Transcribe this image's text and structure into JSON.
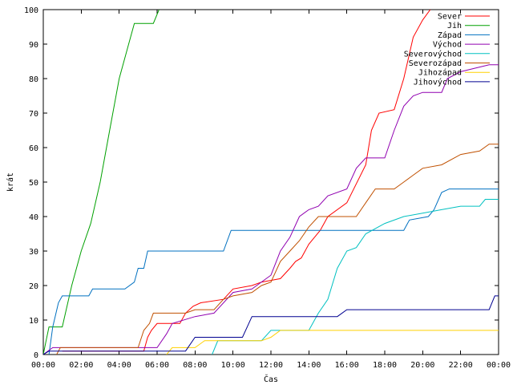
{
  "chart_data": {
    "type": "line",
    "title": "",
    "xlabel": "Čas",
    "ylabel": "krát",
    "xlim": [
      0,
      24
    ],
    "ylim": [
      0,
      100
    ],
    "grid": false,
    "legend_position": "top-right",
    "x_ticks": [
      {
        "value": 0,
        "label": "00:00"
      },
      {
        "value": 2,
        "label": "02:00"
      },
      {
        "value": 4,
        "label": "04:00"
      },
      {
        "value": 6,
        "label": "06:00"
      },
      {
        "value": 8,
        "label": "08:00"
      },
      {
        "value": 10,
        "label": "10:00"
      },
      {
        "value": 12,
        "label": "12:00"
      },
      {
        "value": 14,
        "label": "14:00"
      },
      {
        "value": 16,
        "label": "16:00"
      },
      {
        "value": 18,
        "label": "18:00"
      },
      {
        "value": 20,
        "label": "20:00"
      },
      {
        "value": 22,
        "label": "22:00"
      },
      {
        "value": 24,
        "label": "00:00"
      }
    ],
    "y_ticks": [
      {
        "value": 0,
        "label": "0"
      },
      {
        "value": 10,
        "label": "10"
      },
      {
        "value": 20,
        "label": "20"
      },
      {
        "value": 30,
        "label": "30"
      },
      {
        "value": 40,
        "label": "40"
      },
      {
        "value": 50,
        "label": "50"
      },
      {
        "value": 60,
        "label": "60"
      },
      {
        "value": 70,
        "label": "70"
      },
      {
        "value": 80,
        "label": "80"
      },
      {
        "value": 90,
        "label": "90"
      },
      {
        "value": 100,
        "label": "100"
      }
    ],
    "series": [
      {
        "name": "Sever",
        "color": "#ff0000",
        "points": [
          [
            1.0,
            1
          ],
          [
            5.3,
            1
          ],
          [
            5.5,
            5
          ],
          [
            5.7,
            7
          ],
          [
            6.0,
            9
          ],
          [
            7.2,
            9
          ],
          [
            7.5,
            12
          ],
          [
            7.9,
            14
          ],
          [
            8.3,
            15
          ],
          [
            9.5,
            16
          ],
          [
            10.0,
            19
          ],
          [
            11.0,
            20
          ],
          [
            11.5,
            21
          ],
          [
            12.5,
            22
          ],
          [
            13.0,
            25
          ],
          [
            13.3,
            27
          ],
          [
            13.6,
            28
          ],
          [
            14.0,
            32
          ],
          [
            14.3,
            34
          ],
          [
            14.6,
            36
          ],
          [
            15.0,
            40
          ],
          [
            16.0,
            44
          ],
          [
            17.0,
            55
          ],
          [
            17.3,
            65
          ],
          [
            17.7,
            70
          ],
          [
            18.5,
            71
          ],
          [
            19.0,
            80
          ],
          [
            19.5,
            92
          ],
          [
            20.0,
            97
          ],
          [
            20.4,
            100
          ]
        ]
      },
      {
        "name": "Jih",
        "color": "#00a000",
        "points": [
          [
            0.0,
            0
          ],
          [
            0.15,
            4
          ],
          [
            0.3,
            8
          ],
          [
            1.0,
            8
          ],
          [
            1.5,
            20
          ],
          [
            2.0,
            30
          ],
          [
            2.5,
            38
          ],
          [
            3.0,
            50
          ],
          [
            3.5,
            65
          ],
          [
            4.0,
            80
          ],
          [
            4.5,
            90
          ],
          [
            4.8,
            96
          ],
          [
            5.8,
            96
          ],
          [
            6.1,
            100
          ]
        ]
      },
      {
        "name": "Západ",
        "color": "#0070c0",
        "points": [
          [
            0.3,
            0
          ],
          [
            0.5,
            8
          ],
          [
            0.8,
            15
          ],
          [
            1.0,
            17
          ],
          [
            2.4,
            17
          ],
          [
            2.6,
            19
          ],
          [
            4.3,
            19
          ],
          [
            4.8,
            21
          ],
          [
            5.0,
            25
          ],
          [
            5.3,
            25
          ],
          [
            5.5,
            30
          ],
          [
            9.5,
            30
          ],
          [
            9.9,
            36
          ],
          [
            19.0,
            36
          ],
          [
            19.3,
            39
          ],
          [
            20.3,
            40
          ],
          [
            20.6,
            42
          ],
          [
            21.0,
            47
          ],
          [
            21.4,
            48
          ],
          [
            24.0,
            48
          ]
        ]
      },
      {
        "name": "Východ",
        "color": "#9000b0",
        "points": [
          [
            0.0,
            0
          ],
          [
            0.5,
            2
          ],
          [
            6.0,
            2
          ],
          [
            6.5,
            6
          ],
          [
            6.8,
            9
          ],
          [
            8.0,
            11
          ],
          [
            9.0,
            12
          ],
          [
            10.0,
            18
          ],
          [
            11.0,
            19
          ],
          [
            12.0,
            23
          ],
          [
            12.5,
            30
          ],
          [
            13.0,
            34
          ],
          [
            13.5,
            40
          ],
          [
            14.0,
            42
          ],
          [
            14.5,
            43
          ],
          [
            15.0,
            46
          ],
          [
            16.0,
            48
          ],
          [
            16.5,
            54
          ],
          [
            17.0,
            57
          ],
          [
            18.0,
            57
          ],
          [
            18.5,
            65
          ],
          [
            19.0,
            72
          ],
          [
            19.5,
            75
          ],
          [
            20.0,
            76
          ],
          [
            21.0,
            76
          ],
          [
            21.3,
            80
          ],
          [
            22.0,
            82
          ],
          [
            23.5,
            84
          ],
          [
            24.0,
            84
          ]
        ]
      },
      {
        "name": "Severovýchod",
        "color": "#00c0c0",
        "points": [
          [
            8.9,
            0
          ],
          [
            9.2,
            4
          ],
          [
            11.5,
            4
          ],
          [
            12.0,
            7
          ],
          [
            14.0,
            7
          ],
          [
            14.5,
            12
          ],
          [
            15.0,
            16
          ],
          [
            15.5,
            25
          ],
          [
            16.0,
            30
          ],
          [
            16.5,
            31
          ],
          [
            17.0,
            35
          ],
          [
            18.0,
            38
          ],
          [
            19.0,
            40
          ],
          [
            20.0,
            41
          ],
          [
            21.0,
            42
          ],
          [
            22.0,
            43
          ],
          [
            23.0,
            43
          ],
          [
            23.3,
            45
          ],
          [
            24.0,
            45
          ]
        ]
      },
      {
        "name": "Severozápad",
        "color": "#c05000",
        "points": [
          [
            0.7,
            0
          ],
          [
            0.9,
            2
          ],
          [
            5.0,
            2
          ],
          [
            5.3,
            7
          ],
          [
            5.6,
            9
          ],
          [
            5.8,
            12
          ],
          [
            7.5,
            12
          ],
          [
            8.0,
            13
          ],
          [
            9.0,
            13
          ],
          [
            9.5,
            16
          ],
          [
            10.0,
            17
          ],
          [
            11.0,
            18
          ],
          [
            11.5,
            20
          ],
          [
            12.0,
            21
          ],
          [
            12.5,
            27
          ],
          [
            13.0,
            30
          ],
          [
            13.5,
            33
          ],
          [
            14.0,
            37
          ],
          [
            14.5,
            40
          ],
          [
            16.5,
            40
          ],
          [
            17.0,
            44
          ],
          [
            17.5,
            48
          ],
          [
            18.5,
            48
          ],
          [
            19.0,
            50
          ],
          [
            19.5,
            52
          ],
          [
            20.0,
            54
          ],
          [
            21.0,
            55
          ],
          [
            22.0,
            58
          ],
          [
            23.0,
            59
          ],
          [
            23.5,
            61
          ],
          [
            24.0,
            61
          ]
        ]
      },
      {
        "name": "Jihozápad",
        "color": "#ffd000",
        "points": [
          [
            6.5,
            0
          ],
          [
            6.8,
            2
          ],
          [
            8.0,
            2
          ],
          [
            8.5,
            4
          ],
          [
            11.5,
            4
          ],
          [
            12.0,
            5
          ],
          [
            12.5,
            7
          ],
          [
            24.0,
            7
          ]
        ]
      },
      {
        "name": "Jihovýchod",
        "color": "#000090",
        "points": [
          [
            0.0,
            0
          ],
          [
            0.3,
            1
          ],
          [
            7.5,
            1
          ],
          [
            8.0,
            5
          ],
          [
            10.5,
            5
          ],
          [
            11.0,
            11
          ],
          [
            15.5,
            11
          ],
          [
            16.0,
            13
          ],
          [
            23.5,
            13
          ],
          [
            23.8,
            17
          ],
          [
            24.0,
            17
          ]
        ]
      }
    ]
  }
}
